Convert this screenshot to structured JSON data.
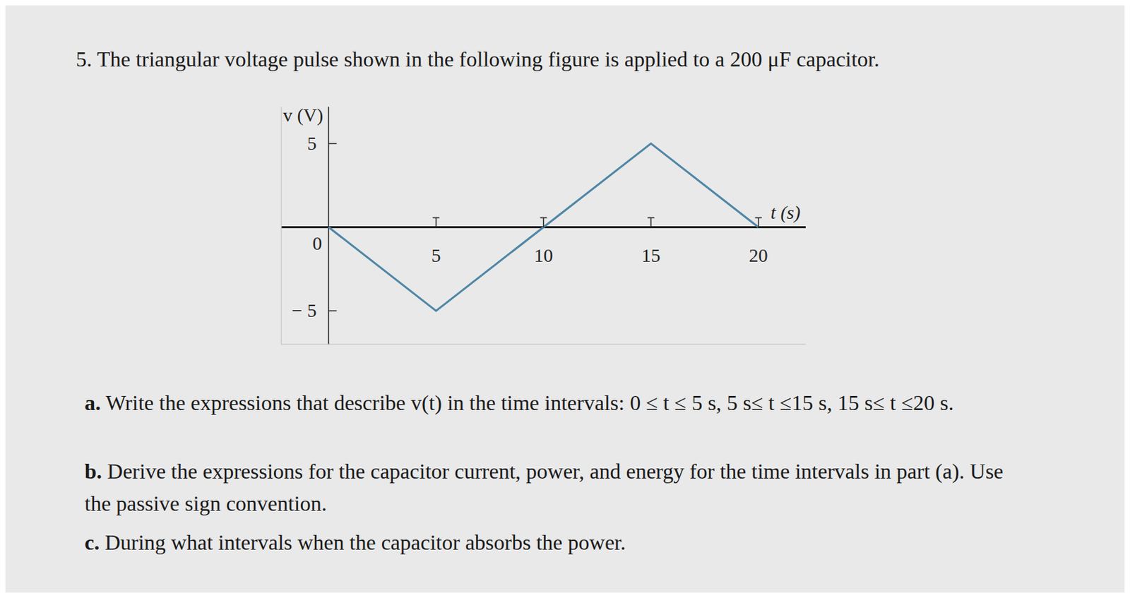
{
  "question": "5. The triangular voltage pulse shown in the following figure is applied to a 200 μF capacitor.",
  "chart_data": {
    "type": "line",
    "x_label": "t (s)",
    "y_label": "v (V)",
    "x": [
      0,
      5,
      15,
      20
    ],
    "values": [
      0,
      -5,
      5,
      0
    ],
    "color": "#4f86a6",
    "xlim": [
      -2.2,
      22.2
    ],
    "ylim": [
      -7,
      7.2
    ],
    "xticks": [
      0,
      5,
      10,
      15,
      20
    ],
    "yticks": [
      {
        "value": -5,
        "label": "− 5"
      },
      5
    ]
  },
  "parts": [
    {
      "label": "a.",
      "text": "Write the expressions that describe v(t) in the time intervals: 0 ≤ t ≤ 5 s, 5 s≤ t ≤15 s, 15 s≤ t ≤20 s."
    },
    {
      "label": "b.",
      "text": "Derive the expressions for the capacitor current, power, and energy for the time intervals in part (a). Use the passive sign convention."
    },
    {
      "label": "c.",
      "text": "During what intervals when the capacitor absorbs the power."
    }
  ]
}
